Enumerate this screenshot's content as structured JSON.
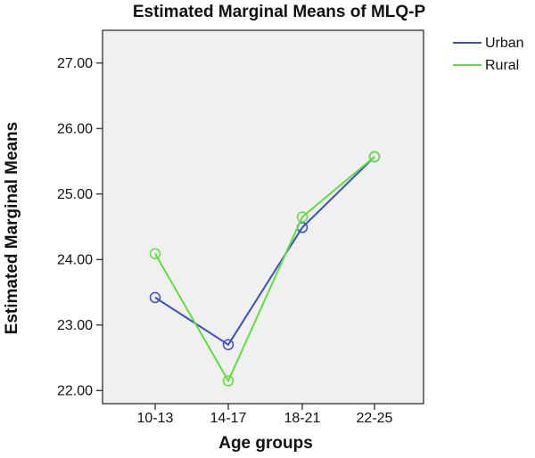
{
  "chart_data": {
    "type": "line",
    "title": "Estimated Marginal Means of MLQ-P",
    "xlabel": "Age groups",
    "ylabel": "Estimated Marginal Means",
    "categories": [
      "10-13",
      "14-17",
      "18-21",
      "22-25"
    ],
    "ylim": [
      21.8,
      27.5
    ],
    "yticks": [
      "22.00",
      "23.00",
      "24.00",
      "25.00",
      "26.00",
      "27.00"
    ],
    "grid": false,
    "legend_position": "right",
    "series": [
      {
        "name": "Urban",
        "color": "#3a4fc9",
        "values": [
          23.42,
          22.7,
          24.49,
          25.57
        ]
      },
      {
        "name": "Rural",
        "color": "#5ee03c",
        "values": [
          24.09,
          22.15,
          24.65,
          25.57
        ]
      }
    ]
  }
}
